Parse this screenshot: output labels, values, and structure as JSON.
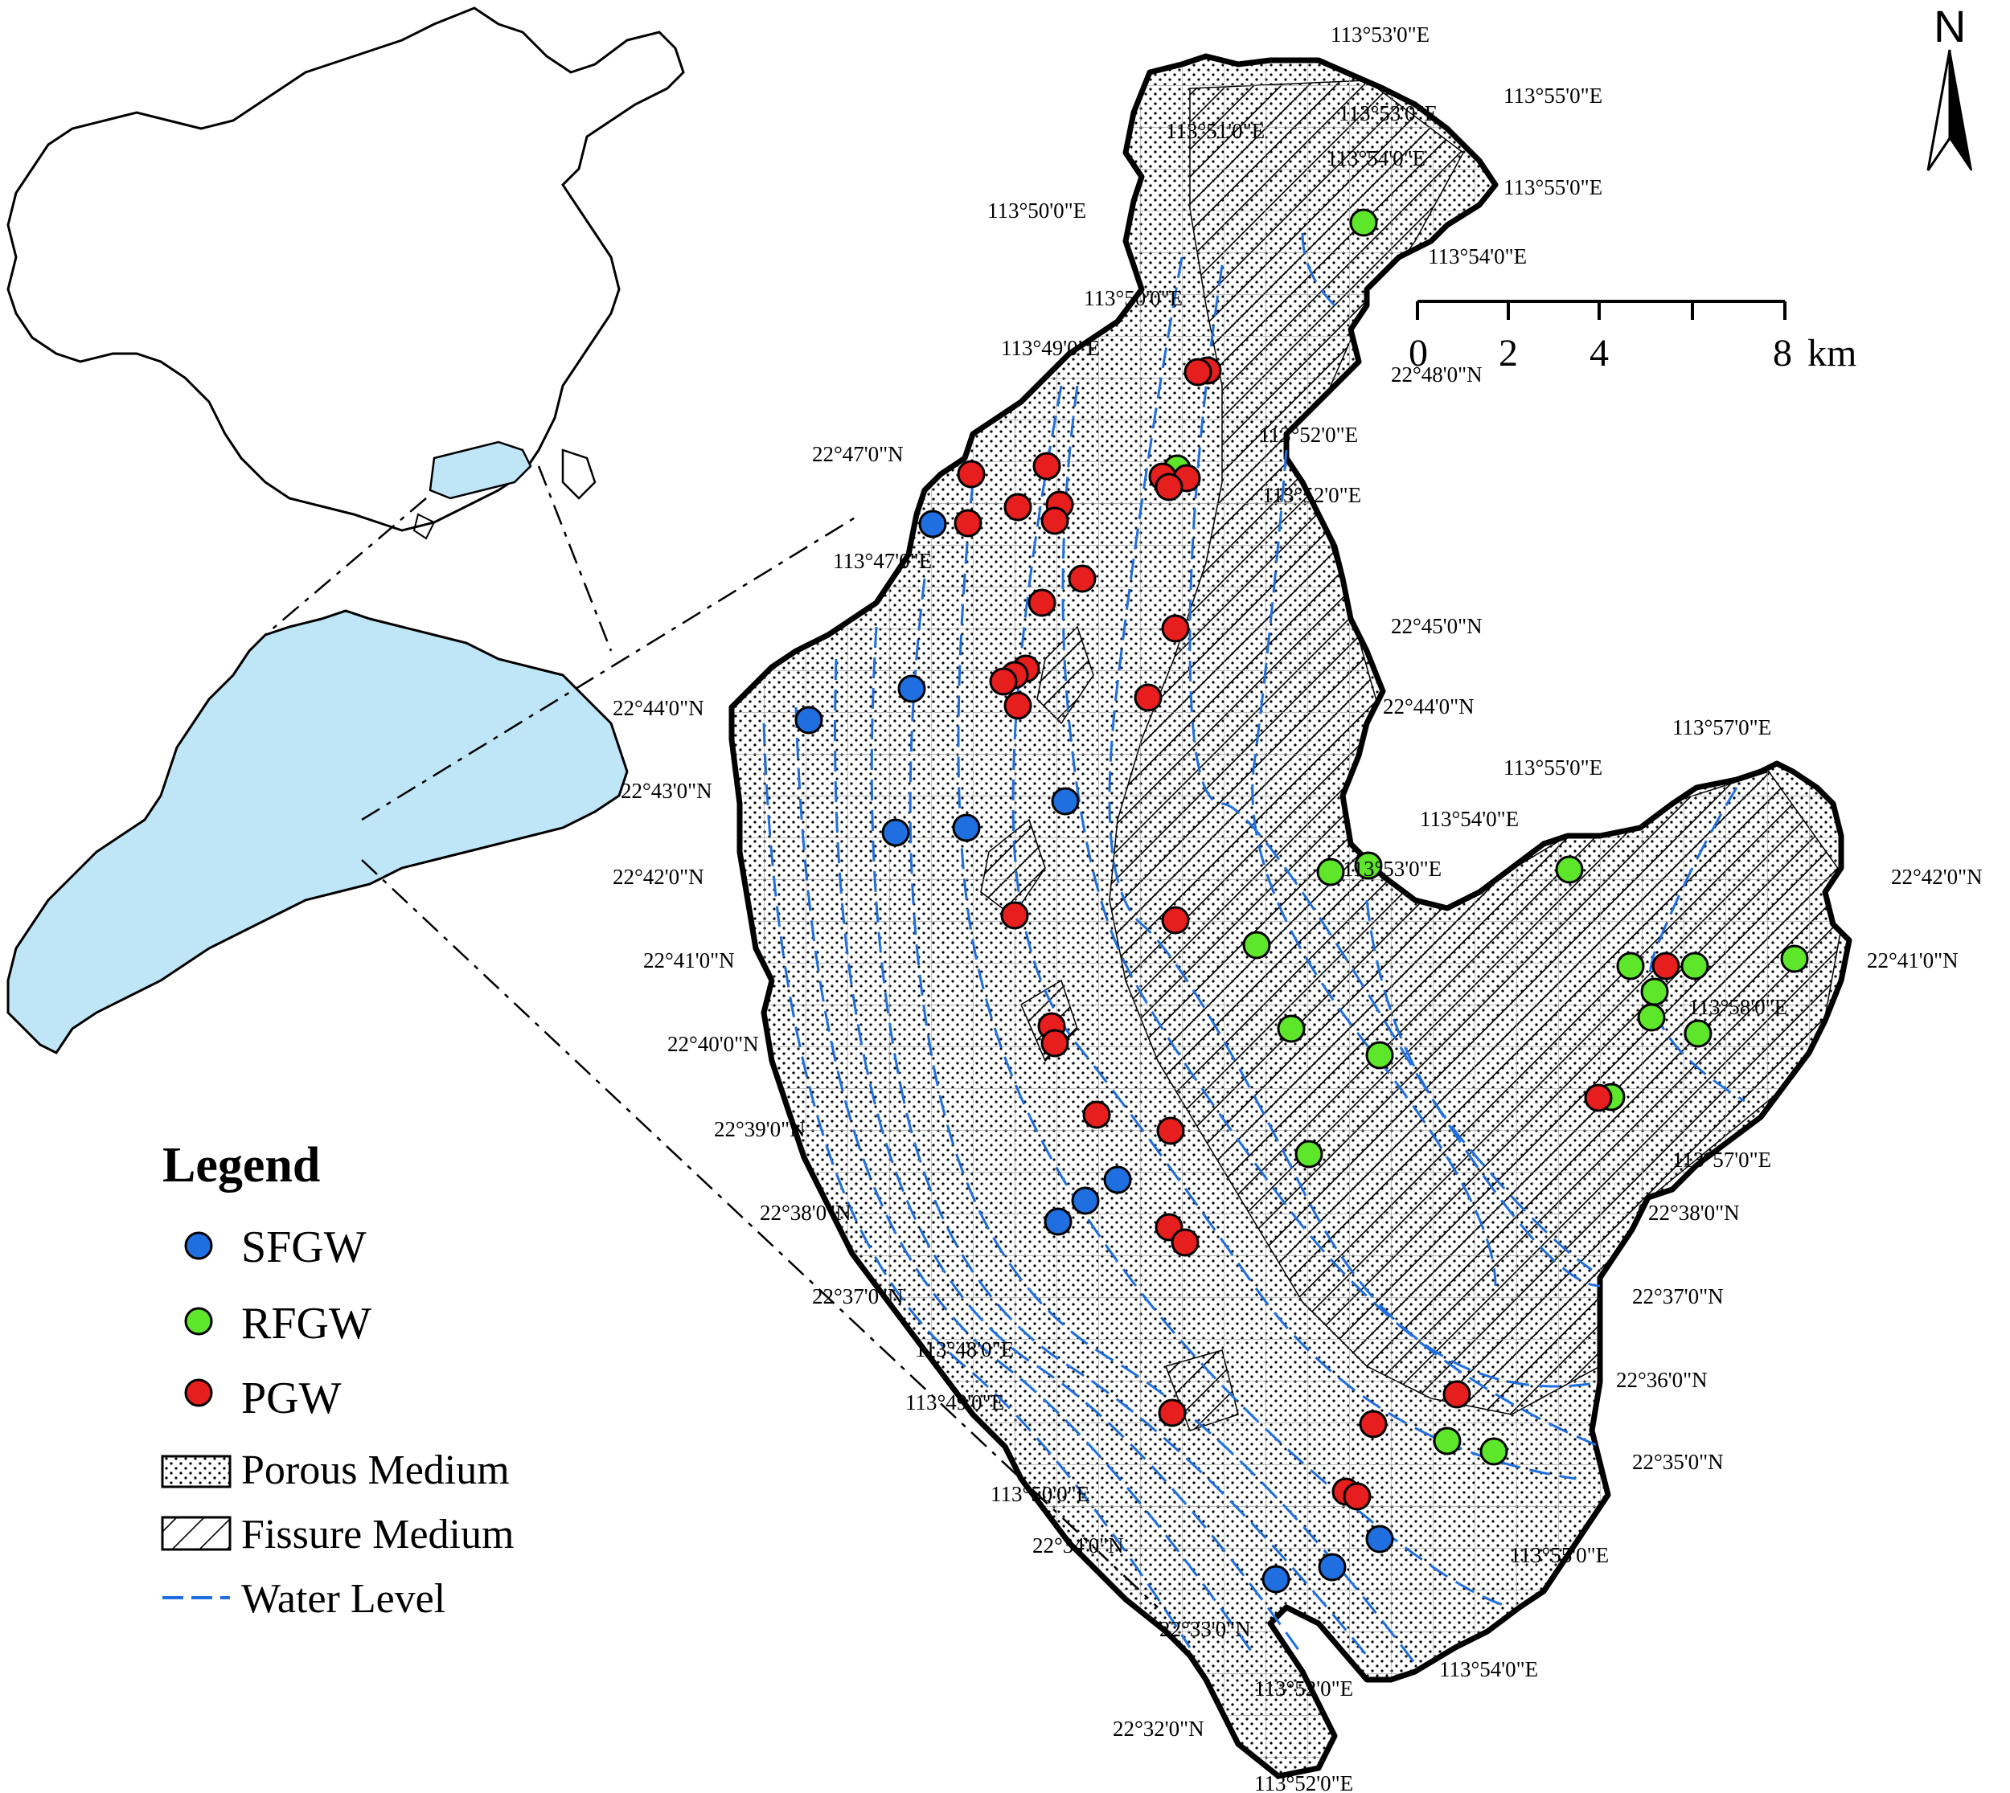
{
  "colors": {
    "sfgw": "#1f6fe0",
    "rfgw": "#5ee62a",
    "pgw": "#e61e1e",
    "province": "#bfe6f7",
    "water_level": "#1f6fe0"
  },
  "legend": {
    "title": "Legend",
    "sfgw": "SFGW",
    "rfgw": "RFGW",
    "pgw": "PGW",
    "porous": "Porous Medium",
    "fissure": "Fissure Medium",
    "water_level": "Water Level"
  },
  "north_arrow": {
    "label": "N"
  },
  "scale_bar": {
    "ticks": [
      "0",
      "2",
      "4",
      "8"
    ],
    "unit": "km"
  },
  "coordinate_labels": [
    "113°53'0\"E",
    "113°55'0\"E",
    "113°51'0\"E",
    "113°53'0\"E",
    "113°54'0\"E",
    "113°55'0\"E",
    "113°50'0\"E",
    "113°54'0\"E",
    "113°50'0\"E",
    "113°49'0\"E",
    "22°48'0\"N",
    "113°52'0\"E",
    "22°47'0\"N",
    "113°52'0\"E",
    "113°47'0\"E",
    "22°45'0\"N",
    "22°44'0\"N",
    "22°44'0\"N",
    "113°57'0\"E",
    "113°55'0\"E",
    "22°43'0\"N",
    "113°54'0\"E",
    "113°53'0\"E",
    "22°42'0\"N",
    "22°42'0\"N",
    "22°41'0\"N",
    "22°41'0\"N",
    "113°58'0\"E",
    "22°40'0\"N",
    "113°57'0\"E",
    "22°39'0\"N",
    "22°38'0\"N",
    "22°38'0\"N",
    "22°37'0\"N",
    "22°37'0\"N",
    "113°48'0\"E",
    "22°36'0\"N",
    "113°49'0\"E",
    "22°35'0\"N",
    "113°50'0\"E",
    "22°34'0\"N",
    "113°55'0\"E",
    "22°33'0\"N",
    "113°54'0\"E",
    "113°52'0\"E",
    "22°32'0\"N",
    "113°52'0\"E"
  ],
  "sampling_points": {
    "sfgw_count": 12,
    "rfgw_count": 18,
    "pgw_count": 34
  }
}
